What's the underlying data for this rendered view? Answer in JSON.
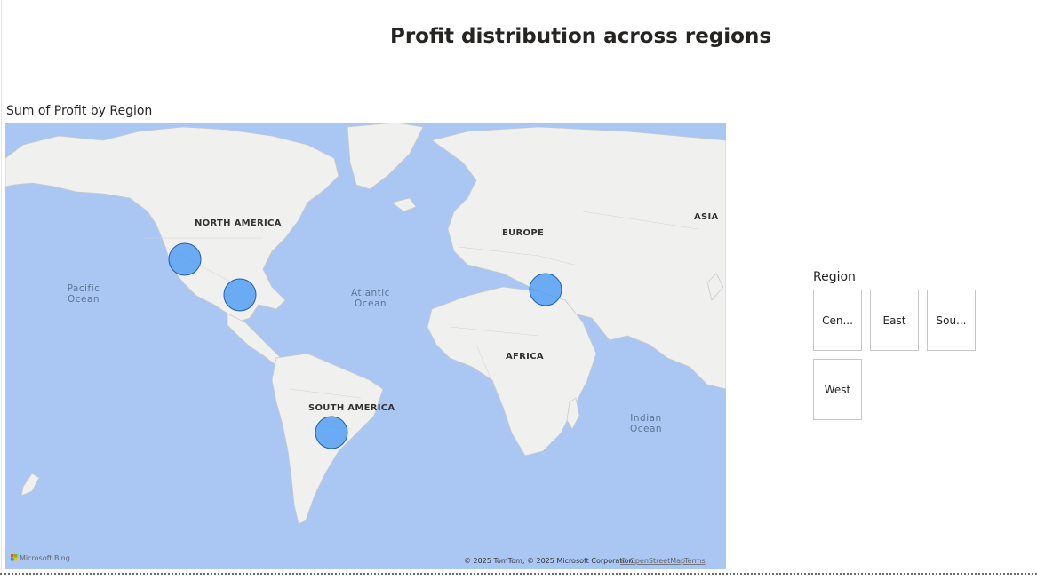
{
  "page": {
    "title": "Profit distribution across regions"
  },
  "map_visual": {
    "title": "Sum of Profit by Region",
    "bubble_color": "#4a9af5",
    "labels": {
      "north_america": "NORTH AMERICA",
      "south_america": "SOUTH AMERICA",
      "europe": "EUROPE",
      "africa": "AFRICA",
      "asia": "ASIA",
      "pacific_line1": "Pacific",
      "pacific_line2": "Ocean",
      "atlantic_line1": "Atlantic",
      "atlantic_line2": "Ocean",
      "indian_line1": "Indian",
      "indian_line2": "Ocean"
    },
    "attribution": "© 2025 TomTom, © 2025 Microsoft Corporation,",
    "osm_link": "© OpenStreetMap",
    "terms_link": "Terms",
    "provider": "Microsoft Bing"
  },
  "slicer": {
    "header": "Region",
    "items": [
      "Cen...",
      "East",
      "Sou...",
      "West"
    ]
  }
}
